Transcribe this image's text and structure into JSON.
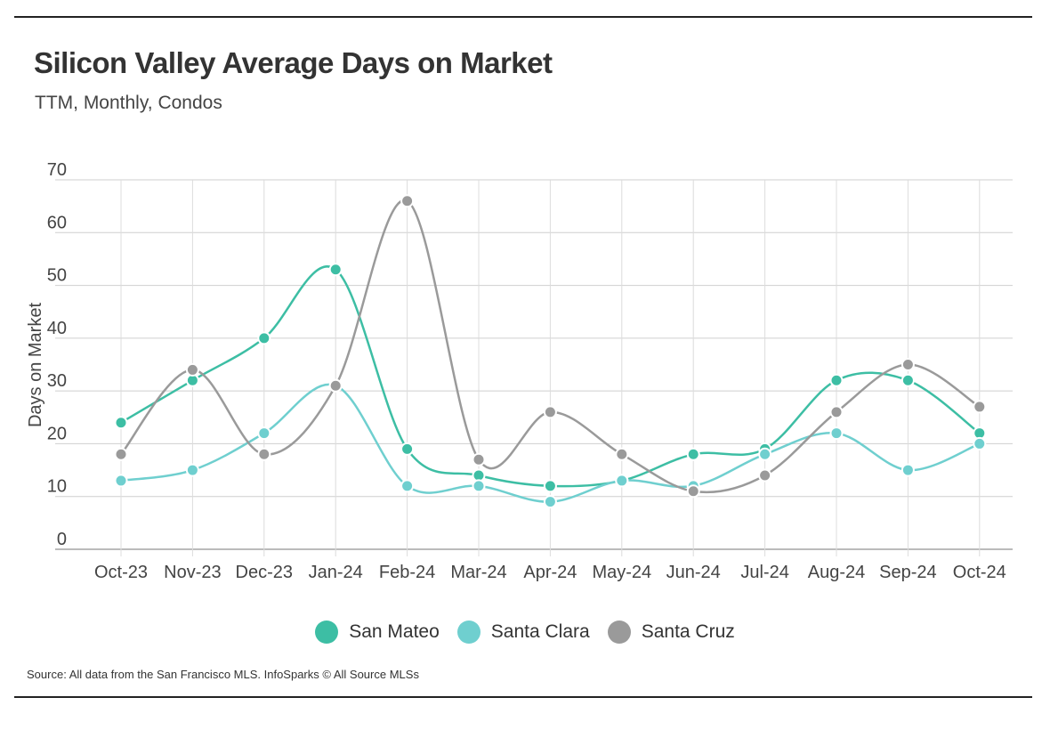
{
  "header": {
    "title": "Silicon Valley Average Days on Market",
    "subtitle": "TTM, Monthly, Condos"
  },
  "footer": {
    "source": "Source:  All data from the San Francisco MLS. InfoSparks © All Source MLSs"
  },
  "chart_data": {
    "type": "line",
    "ylabel": "Days on Market",
    "xlabel": "",
    "ylim": [
      0,
      70
    ],
    "yticks": [
      0,
      10,
      20,
      30,
      40,
      50,
      60,
      70
    ],
    "grid": true,
    "legend_position": "bottom-center",
    "categories": [
      "Oct-23",
      "Nov-23",
      "Dec-23",
      "Jan-24",
      "Feb-24",
      "Mar-24",
      "Apr-24",
      "May-24",
      "Jun-24",
      "Jul-24",
      "Aug-24",
      "Sep-24",
      "Oct-24"
    ],
    "series": [
      {
        "name": "San Mateo",
        "color": "#3dbea4",
        "values": [
          24,
          32,
          40,
          53,
          19,
          14,
          12,
          13,
          18,
          19,
          32,
          32,
          22
        ]
      },
      {
        "name": "Santa Clara",
        "color": "#6fcfcf",
        "values": [
          13,
          15,
          22,
          31,
          12,
          12,
          9,
          13,
          12,
          18,
          22,
          15,
          20
        ]
      },
      {
        "name": "Santa Cruz",
        "color": "#9a9a9a",
        "values": [
          18,
          34,
          18,
          31,
          66,
          17,
          26,
          18,
          11,
          14,
          26,
          35,
          27
        ]
      }
    ]
  }
}
